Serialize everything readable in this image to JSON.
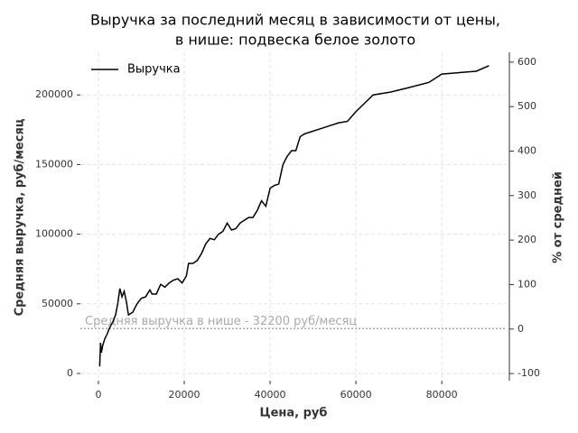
{
  "chart_data": {
    "type": "line",
    "title": [
      "Выручка за последний месяц в зависимости от цены,",
      "в нише: подвеска белое золото"
    ],
    "xlabel": "Цена, руб",
    "ylabel": "Средняя выручка, руб/месяц",
    "y2label": "% от средней",
    "x": [
      300,
      500,
      700,
      1000,
      1500,
      2000,
      2500,
      3000,
      3500,
      4000,
      4500,
      5000,
      5500,
      6000,
      6500,
      7000,
      7500,
      8000,
      9000,
      10000,
      11000,
      12000,
      12500,
      13500,
      14500,
      15500,
      16500,
      17500,
      18500,
      19500,
      20500,
      21000,
      22000,
      23000,
      24000,
      25000,
      26000,
      27000,
      28000,
      29000,
      30000,
      31000,
      32000,
      33000,
      34000,
      35000,
      36000,
      37000,
      38000,
      39000,
      40000,
      41000,
      42000,
      43000,
      44000,
      45000,
      46000,
      47000,
      48000,
      50000,
      52000,
      54000,
      56000,
      58000,
      60000,
      62000,
      64000,
      68000,
      72000,
      77000,
      80000,
      88000,
      91000
    ],
    "series": [
      {
        "name": "Выручка",
        "color": "#000000",
        "values": [
          5000,
          22000,
          15000,
          20000,
          25000,
          28000,
          32000,
          35000,
          38000,
          42000,
          50000,
          61000,
          55000,
          59000,
          52000,
          42000,
          43000,
          44000,
          50000,
          54000,
          55000,
          60000,
          57000,
          57000,
          64000,
          62000,
          65000,
          67000,
          68000,
          65000,
          70000,
          79000,
          79000,
          81000,
          86000,
          93000,
          97000,
          96000,
          100000,
          102000,
          108000,
          103000,
          104000,
          108000,
          110000,
          112000,
          112000,
          117000,
          124000,
          120000,
          133000,
          135000,
          136000,
          150000,
          156000,
          160000,
          160000,
          170000,
          172000,
          174000,
          176000,
          178000,
          180000,
          181000,
          188000,
          194000,
          200000,
          202000,
          205000,
          209000,
          215000,
          217000,
          221000
        ]
      }
    ],
    "xlim": [
      -4200,
      94900
    ],
    "xticks": [
      0,
      20000,
      40000,
      60000,
      80000
    ],
    "ylim": [
      -5200,
      230600
    ],
    "yticks": [
      0,
      50000,
      100000,
      150000,
      200000
    ],
    "y2lim": [
      -116,
      622
    ],
    "y2ticks": [
      -100,
      0,
      100,
      200,
      300,
      400,
      500,
      600
    ],
    "hline": {
      "value": 32200,
      "label": "Средняя выручка в нише - 32200 руб/месяц",
      "color": "#aaaaaa"
    },
    "grid": true,
    "legend": "upper left"
  }
}
